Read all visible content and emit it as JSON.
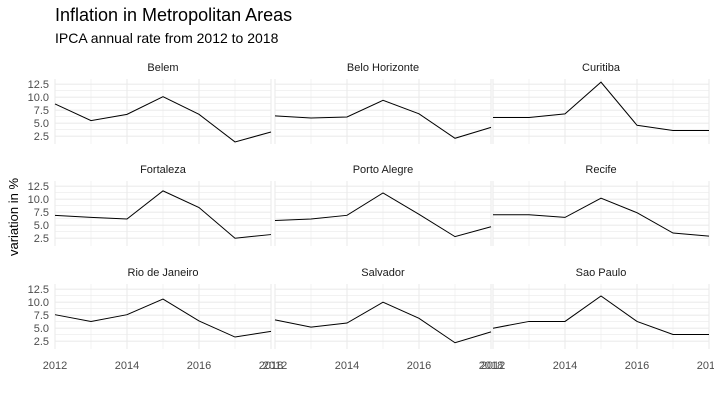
{
  "chart_data": {
    "type": "line",
    "title": "Inflation in Metropolitan Areas",
    "subtitle": "IPCA annual rate from 2012 to 2018",
    "xlabel": "",
    "ylabel": "variation in %",
    "x": [
      2012,
      2013,
      2014,
      2015,
      2016,
      2017,
      2018
    ],
    "xticks": [
      2012,
      2014,
      2016,
      2018
    ],
    "xlim": [
      2012,
      2018
    ],
    "yticks": [
      2.5,
      5.0,
      7.5,
      10.0,
      12.5
    ],
    "ytick_labels": [
      "2.5",
      "5.0",
      "7.5",
      "10.0",
      "12.5"
    ],
    "ylim": [
      1.0,
      13.5
    ],
    "grid": true,
    "line_color": "#000000",
    "grid_color": "#ebebeb",
    "panels": [
      {
        "name": "Belem",
        "values": [
          8.7,
          5.5,
          6.7,
          10.1,
          6.7,
          1.4,
          3.3
        ]
      },
      {
        "name": "Belo Horizonte",
        "values": [
          6.4,
          6.0,
          6.2,
          9.4,
          6.8,
          2.1,
          4.2
        ]
      },
      {
        "name": "Curitiba",
        "values": [
          6.1,
          6.1,
          6.8,
          12.9,
          4.6,
          3.6,
          3.6
        ]
      },
      {
        "name": "Fortaleza",
        "values": [
          6.9,
          6.5,
          6.2,
          11.6,
          8.4,
          2.5,
          3.2
        ]
      },
      {
        "name": "Porto Alegre",
        "values": [
          5.9,
          6.2,
          6.9,
          11.2,
          7.1,
          2.8,
          4.7
        ]
      },
      {
        "name": "Recife",
        "values": [
          7.0,
          7.0,
          6.5,
          10.2,
          7.4,
          3.5,
          2.9
        ]
      },
      {
        "name": "Rio de Janeiro",
        "values": [
          7.6,
          6.3,
          7.6,
          10.6,
          6.4,
          3.3,
          4.4
        ]
      },
      {
        "name": "Salvador",
        "values": [
          6.6,
          5.2,
          6.0,
          10.0,
          6.9,
          2.2,
          4.3
        ]
      },
      {
        "name": "Sao Paulo",
        "values": [
          5.0,
          6.3,
          6.3,
          11.2,
          6.3,
          3.8,
          3.8
        ]
      }
    ]
  }
}
